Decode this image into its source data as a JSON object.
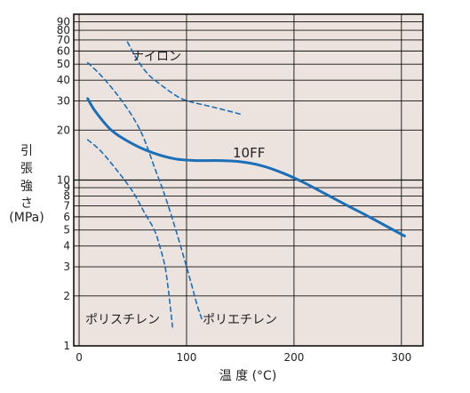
{
  "chart_data": {
    "type": "line",
    "title": "",
    "xlabel": "温 度 (°C)",
    "ylabel_lines": [
      "引",
      "張",
      "強",
      "さ",
      "(MPa)"
    ],
    "x_scale": "linear",
    "y_scale": "log",
    "xlim": [
      -5,
      320
    ],
    "ylim": [
      1,
      100
    ],
    "x_ticks": [
      0,
      100,
      200,
      300
    ],
    "y_ticks": [
      1,
      2,
      3,
      4,
      5,
      6,
      7,
      8,
      9,
      10,
      20,
      30,
      40,
      50,
      60,
      70,
      80,
      90
    ],
    "grid": true,
    "colors": {
      "background": "#ece3df",
      "series": "#1a6fb6",
      "grid": "#111111"
    },
    "series": [
      {
        "name": "10FF",
        "style": "solid",
        "points": [
          [
            8,
            31
          ],
          [
            15,
            26
          ],
          [
            30,
            20
          ],
          [
            50,
            16.5
          ],
          [
            70,
            14.5
          ],
          [
            90,
            13.4
          ],
          [
            110,
            13.1
          ],
          [
            130,
            13.1
          ],
          [
            150,
            12.9
          ],
          [
            170,
            12.2
          ],
          [
            190,
            11
          ],
          [
            210,
            9.6
          ],
          [
            230,
            8.2
          ],
          [
            250,
            7
          ],
          [
            270,
            6
          ],
          [
            290,
            5.1
          ],
          [
            303,
            4.6
          ]
        ]
      },
      {
        "name": "ナイロン",
        "style": "dashed",
        "points": [
          [
            45,
            68
          ],
          [
            55,
            52
          ],
          [
            65,
            43
          ],
          [
            75,
            38
          ],
          [
            85,
            34
          ],
          [
            95,
            31
          ],
          [
            105,
            29.5
          ],
          [
            120,
            28
          ],
          [
            135,
            26.5
          ],
          [
            150,
            25
          ]
        ]
      },
      {
        "name": "ポリエチレン",
        "style": "dashed",
        "points": [
          [
            8,
            51
          ],
          [
            20,
            43
          ],
          [
            35,
            33
          ],
          [
            50,
            24
          ],
          [
            60,
            18
          ],
          [
            70,
            12
          ],
          [
            80,
            8
          ],
          [
            90,
            5
          ],
          [
            100,
            3
          ],
          [
            105,
            2.3
          ],
          [
            110,
            1.75
          ],
          [
            115,
            1.4
          ]
        ]
      },
      {
        "name": "ポリスチレン",
        "style": "dashed",
        "points": [
          [
            8,
            17.5
          ],
          [
            20,
            15
          ],
          [
            35,
            11.5
          ],
          [
            50,
            8.5
          ],
          [
            60,
            6.5
          ],
          [
            70,
            5
          ],
          [
            75,
            4
          ],
          [
            80,
            3
          ],
          [
            83,
            2.2
          ],
          [
            85,
            1.7
          ],
          [
            87,
            1.3
          ]
        ]
      }
    ]
  }
}
